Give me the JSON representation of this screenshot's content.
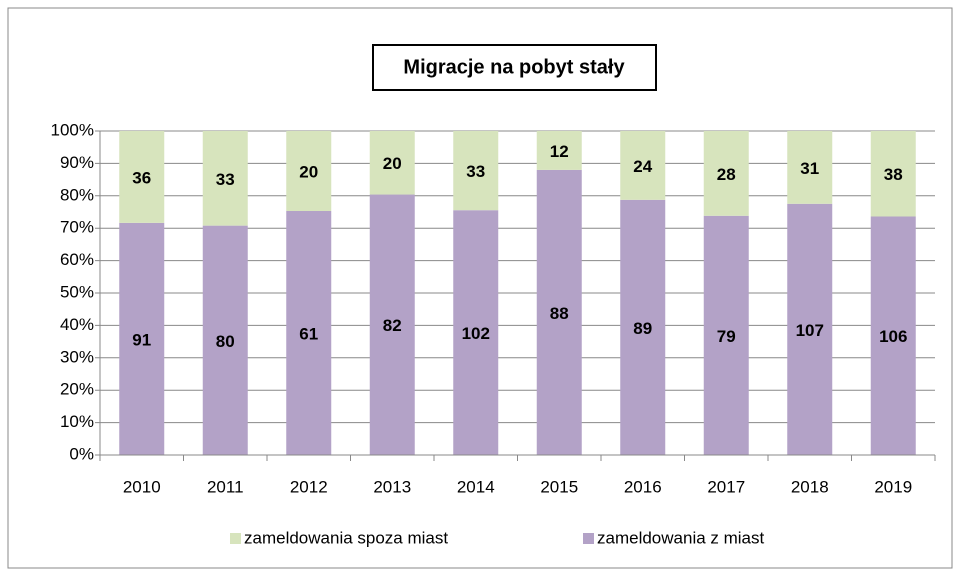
{
  "chart_data": {
    "type": "bar",
    "stacking": "percent",
    "title": "Migracje na pobyt stały",
    "categories": [
      "2010",
      "2011",
      "2012",
      "2013",
      "2014",
      "2015",
      "2016",
      "2017",
      "2018",
      "2019"
    ],
    "series": [
      {
        "name": "zameldowania z miast",
        "color": "#b3a2c7",
        "values": [
          91,
          80,
          61,
          82,
          102,
          88,
          89,
          79,
          107,
          106
        ]
      },
      {
        "name": "zameldowania spoza miast",
        "color": "#d7e4bd",
        "values": [
          36,
          33,
          20,
          20,
          33,
          12,
          24,
          28,
          31,
          38
        ]
      }
    ],
    "ylim": [
      0,
      100
    ],
    "yticks": [
      {
        "value": 0,
        "label": "0%"
      },
      {
        "value": 10,
        "label": "10%"
      },
      {
        "value": 20,
        "label": "20%"
      },
      {
        "value": 30,
        "label": "30%"
      },
      {
        "value": 40,
        "label": "40%"
      },
      {
        "value": 50,
        "label": "50%"
      },
      {
        "value": 60,
        "label": "60%"
      },
      {
        "value": 70,
        "label": "70%"
      },
      {
        "value": 80,
        "label": "80%"
      },
      {
        "value": 90,
        "label": "90%"
      },
      {
        "value": 100,
        "label": "100%"
      }
    ],
    "grid": true,
    "legend": "bottom"
  }
}
